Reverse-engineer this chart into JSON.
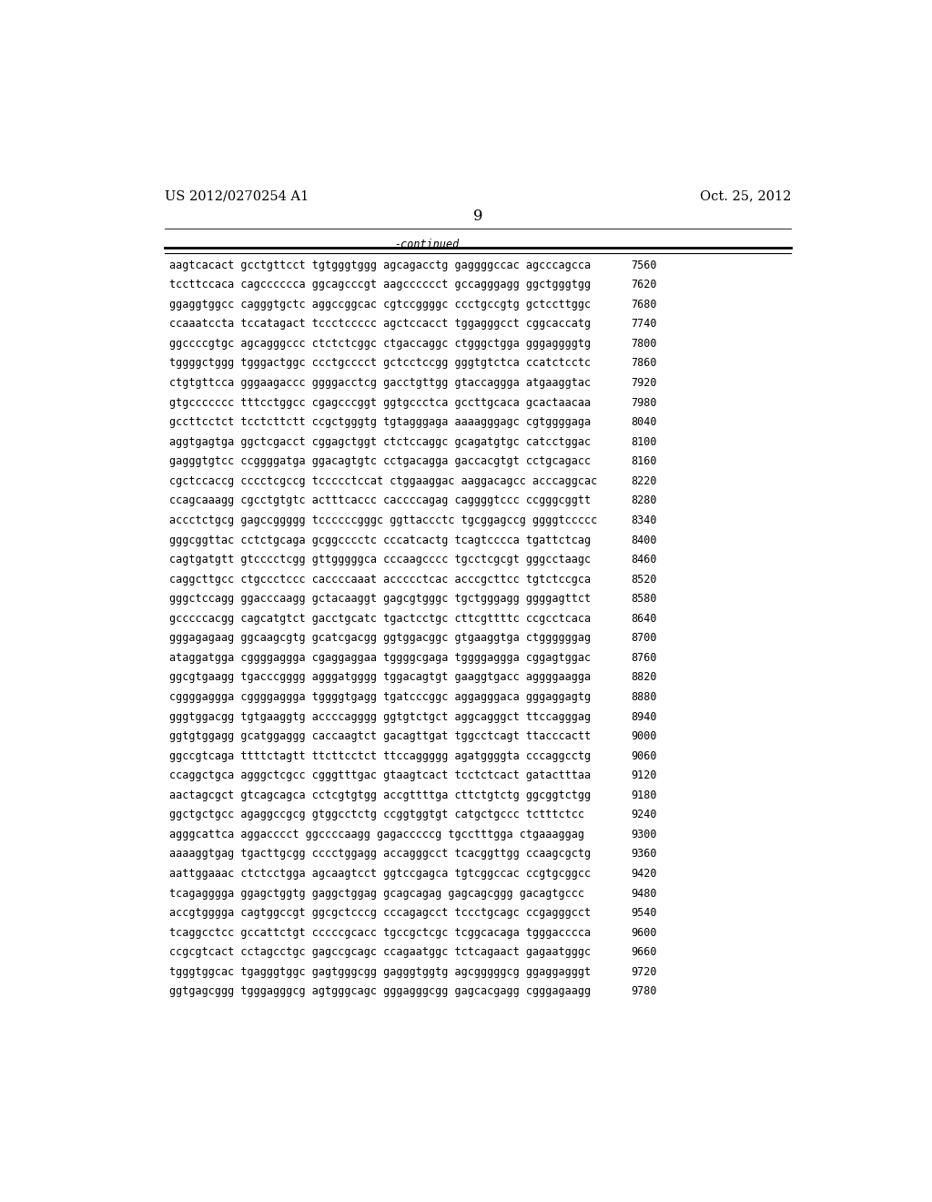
{
  "header_left": "US 2012/0270254 A1",
  "header_right": "Oct. 25, 2012",
  "page_number": "9",
  "continued_label": "-continued",
  "background_color": "#ffffff",
  "text_color": "#000000",
  "font_size_header": 10.5,
  "font_size_body": 8.5,
  "font_size_page": 12,
  "sequences": [
    {
      "seq": "aagtcacact gcctgttcct tgtgggtggg agcagacctg gaggggccac agcccagcca",
      "num": "7560"
    },
    {
      "seq": "tccttccaca cagcccccca ggcagcccgt aagcccccct gccagggagg ggctgggtgg",
      "num": "7620"
    },
    {
      "seq": "ggaggtggcc cagggtgctc aggccggcac cgtccggggc ccctgccgtg gctccttggc",
      "num": "7680"
    },
    {
      "seq": "ccaaatccta tccatagact tccctccccc agctccacct tggagggcct cggcaccatg",
      "num": "7740"
    },
    {
      "seq": "ggccccgtgc agcagggccc ctctctcggc ctgaccaggc ctgggctgga gggaggggtg",
      "num": "7800"
    },
    {
      "seq": "tggggctggg tgggactggc ccctgcccct gctcctccgg gggtgtctca ccatctcctc",
      "num": "7860"
    },
    {
      "seq": "ctgtgttcca gggaagaccc ggggacctcg gacctgttgg gtaccaggga atgaaggtac",
      "num": "7920"
    },
    {
      "seq": "gtgccccccc tttcctggcc cgagcccggt ggtgccctca gccttgcaca gcactaacaa",
      "num": "7980"
    },
    {
      "seq": "gccttcctct tcctcttctt ccgctgggtg tgtagggaga aaaagggagc cgtggggaga",
      "num": "8040"
    },
    {
      "seq": "aggtgagtga ggctcgacct cggagctggt ctctccaggc gcagatgtgc catcctggac",
      "num": "8100"
    },
    {
      "seq": "gagggtgtcc ccggggatga ggacagtgtc cctgacagga gaccacgtgt cctgcagacc",
      "num": "8160"
    },
    {
      "seq": "cgctccaccg cccctcgccg tccccctccat ctggaaggac aaggacagcc acccaggcac",
      "num": "8220"
    },
    {
      "seq": "ccagcaaagg cgcctgtgtc actttcaccc caccccagag caggggtccc ccgggcggtt",
      "num": "8280"
    },
    {
      "seq": "accctctgcg gagccggggg tccccccgggc ggttaccctc tgcggagccg ggggtccccc",
      "num": "8340"
    },
    {
      "seq": "gggcggttac cctctgcaga gcggcccctc cccatcactg tcagtcccca tgattctcag",
      "num": "8400"
    },
    {
      "seq": "cagtgatgtt gtcccctcgg gttgggggca cccaagcccc tgcctcgcgt gggcctaagc",
      "num": "8460"
    },
    {
      "seq": "caggcttgcc ctgccctccc caccccaaat accccctcac acccgcttcc tgtctccgca",
      "num": "8520"
    },
    {
      "seq": "gggctccagg ggacccaagg gctacaaggt gagcgtgggc tgctgggagg ggggagttct",
      "num": "8580"
    },
    {
      "seq": "gcccccacgg cagcatgtct gacctgcatc tgactcctgc cttcgttttc ccgcctcaca",
      "num": "8640"
    },
    {
      "seq": "gggagagaag ggcaagcgtg gcatcgacgg ggtggacggc gtgaaggtga ctggggggag",
      "num": "8700"
    },
    {
      "seq": "ataggatgga cggggaggga cgaggaggaa tggggcgaga tggggaggga cggagtggac",
      "num": "8760"
    },
    {
      "seq": "ggcgtgaagg tgacccgggg agggatgggg tggacagtgt gaaggtgacc aggggaagga",
      "num": "8820"
    },
    {
      "seq": "cggggaggga cggggaggga tggggtgagg tgatcccggc aggagggaca gggaggagtg",
      "num": "8880"
    },
    {
      "seq": "gggtggacgg tgtgaaggtg accccagggg ggtgtctgct aggcagggct ttccagggag",
      "num": "8940"
    },
    {
      "seq": "ggtgtggagg gcatggaggg caccaagtct gacagttgat tggcctcagt ttacccactt",
      "num": "9000"
    },
    {
      "seq": "ggccgtcaga ttttctagtt ttcttcctct ttccaggggg agatggggta cccaggcctg",
      "num": "9060"
    },
    {
      "seq": "ccaggctgca agggctcgcc cgggtttgac gtaagtcact tcctctcact gatactttaa",
      "num": "9120"
    },
    {
      "seq": "aactagcgct gtcagcagca cctcgtgtgg accgttttga cttctgtctg ggcggtctgg",
      "num": "9180"
    },
    {
      "seq": "ggctgctgcc agaggccgcg gtggcctctg ccggtggtgt catgctgccc tctttctcc",
      "num": "9240"
    },
    {
      "seq": "agggcattca aggacccct ggccccaagg gagacccccg tgcctttgga ctgaaaggag",
      "num": "9300"
    },
    {
      "seq": "aaaaggtgag tgacttgcgg cccctggagg accagggcct tcacggttgg ccaagcgctg",
      "num": "9360"
    },
    {
      "seq": "aattggaaac ctctcctgga agcaagtcct ggtccgagca tgtcggccac ccgtgcggcc",
      "num": "9420"
    },
    {
      "seq": "tcagagggga ggagctggtg gaggctggag gcagcagag gagcagcggg gacagtgccc",
      "num": "9480"
    },
    {
      "seq": "accgtgggga cagtggccgt ggcgctcccg cccagagcct tccctgcagc ccgagggcct",
      "num": "9540"
    },
    {
      "seq": "tcaggcctcc gccattctgt cccccgcacc tgccgctcgc tcggcacaga tgggacccca",
      "num": "9600"
    },
    {
      "seq": "ccgcgtcact cctagcctgc gagccgcagc ccagaatggc tctcagaact gagaatgggc",
      "num": "9660"
    },
    {
      "seq": "tgggtggcac tgagggtggc gagtgggcgg gagggtggtg agcgggggcg ggaggagggt",
      "num": "9720"
    },
    {
      "seq": "ggtgagcggg tgggagggcg agtgggcagc gggagggcgg gagcacgagg cgggagaagg",
      "num": "9780"
    }
  ]
}
